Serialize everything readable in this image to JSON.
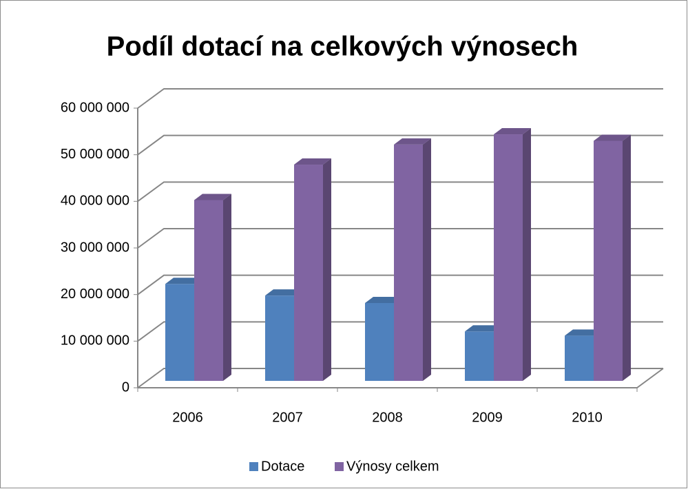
{
  "chart_data": {
    "type": "bar3d",
    "title": "Podíl dotací na celkových výnosech",
    "categories": [
      "2006",
      "2007",
      "2008",
      "2009",
      "2010"
    ],
    "series": [
      {
        "name": "Dotace",
        "color": "#4f81bd",
        "values": [
          20800000,
          18300000,
          16700000,
          10600000,
          9700000
        ]
      },
      {
        "name": "Výnosy celkem",
        "color": "#8064a2",
        "values": [
          38800000,
          46400000,
          50700000,
          52900000,
          51500000
        ]
      }
    ],
    "ylim": [
      0,
      60000000
    ],
    "yticks": [
      {
        "value": 0,
        "label": "0"
      },
      {
        "value": 10000000,
        "label": "10 000 000"
      },
      {
        "value": 20000000,
        "label": "20 000 000"
      },
      {
        "value": 30000000,
        "label": "30 000 000"
      },
      {
        "value": 40000000,
        "label": "40 000 000"
      },
      {
        "value": 50000000,
        "label": "50 000 000"
      },
      {
        "value": 60000000,
        "label": "60 000 000"
      }
    ],
    "grid": true,
    "legend": "bottom"
  }
}
